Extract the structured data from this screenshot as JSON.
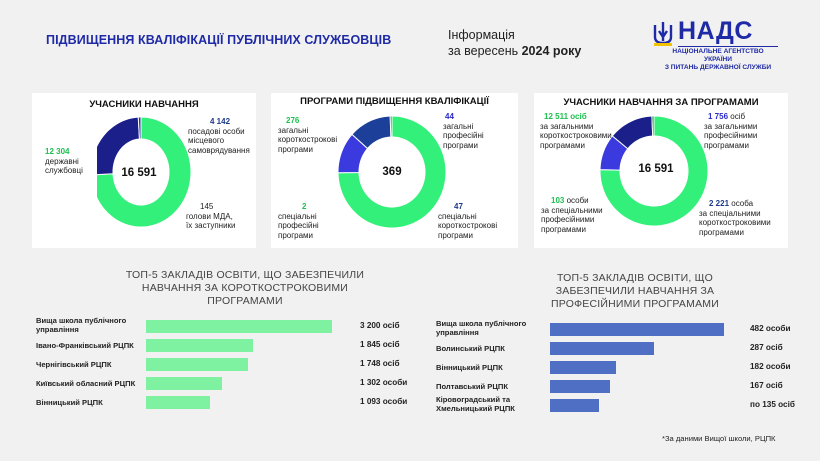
{
  "header": {
    "title": "ПІДВИЩЕННЯ КВАЛІФІКАЦІЇ ПУБЛІЧНИХ СЛУЖБОВЦІВ",
    "info_line1": "Інформація",
    "info_line2_prefix": "за вересень ",
    "info_line2_year": "2024 року",
    "logo_text": "НАДС",
    "logo_sub1": "НАЦІОНАЛЬНЕ АГЕНТСТВО УКРАЇНИ",
    "logo_sub2": "З ПИТАНЬ ДЕРЖАВНОЇ СЛУЖБИ"
  },
  "colors": {
    "green": "#33f07a",
    "blue": "#3a3adf",
    "navy": "#1a1f8a",
    "darkblue": "#1c3f9a",
    "bar_green": "#7ef2a0",
    "bar_blue": "#4f6fc4"
  },
  "panel1": {
    "title": "УЧАСНИКИ НАВЧАННЯ",
    "center": "16 591",
    "left_num": "12 304",
    "left_l1": "державні",
    "left_l2": "службовці",
    "right_num": "4 142",
    "right_l1": "посадові особи",
    "right_l2": "місцевого",
    "right_l3": "самоврядування",
    "bottom_num": "145",
    "bottom_l1": "голови МДА,",
    "bottom_l2": "їх заступники"
  },
  "panel2": {
    "title": "ПРОГРАМИ ПІДВИЩЕННЯ КВАЛІФІКАЦІЇ",
    "center": "369",
    "tl_num": "276",
    "tl_l1": "загальні",
    "tl_l2": "короткострокові",
    "tl_l3": "програми",
    "tr_num": "44",
    "tr_l1": "загальні",
    "tr_l2": "професійні",
    "tr_l3": "програми",
    "bl_num": "2",
    "bl_l1": "спеціальні",
    "bl_l2": "професійні",
    "bl_l3": "програми",
    "br_num": "47",
    "br_l1": "спеціальні",
    "br_l2": "короткострокові",
    "br_l3": "програми"
  },
  "panel3": {
    "title": "УЧАСНИКИ НАВЧАННЯ ЗА ПРОГРАМАМИ",
    "center": "16 591",
    "tl_num": "12 511 осіб",
    "tl_l1": "за загальними",
    "tl_l2": "короткостроковими",
    "tl_l3": "програмами",
    "tr_num": "1 756",
    "tr_num_suffix": " осіб",
    "tr_l1": "за загальними",
    "tr_l2": "професійними",
    "tr_l3": "програмами",
    "bl_num": "103",
    "bl_suffix": " особи",
    "bl_l1": "за спеціальними",
    "bl_l2": "професійними",
    "bl_l3": "програмами",
    "br_num": "2 221",
    "br_suffix": " особа",
    "br_l1": "за спеціальними",
    "br_l2": "короткостроковими",
    "br_l3": "програмами"
  },
  "chart_data": [
    {
      "type": "pie",
      "title": "УЧАСНИКИ НАВЧАННЯ",
      "categories": [
        "державні службовці",
        "посадові особи місцевого самоврядування",
        "голови МДА, їх заступники"
      ],
      "values": [
        12304,
        4142,
        145
      ],
      "colors": [
        "#33f07a",
        "#1a1f8a",
        "#1c3f9a"
      ]
    },
    {
      "type": "pie",
      "title": "ПРОГРАМИ ПІДВИЩЕННЯ КВАЛІФІКАЦІЇ",
      "categories": [
        "загальні короткострокові програми",
        "загальні професійні програми",
        "спеціальні короткострокові програми",
        "спеціальні професійні програми"
      ],
      "values": [
        276,
        44,
        47,
        2
      ],
      "colors": [
        "#33f07a",
        "#3a3adf",
        "#1c3f9a",
        "#1a7a3a"
      ]
    },
    {
      "type": "pie",
      "title": "УЧАСНИКИ НАВЧАННЯ ЗА ПРОГРАМАМИ",
      "categories": [
        "за загальними короткостроковими програмами",
        "за загальними професійними програмами",
        "за спеціальними короткостроковими програмами",
        "за спеціальними професійними програмами"
      ],
      "values": [
        12511,
        1756,
        2221,
        103
      ],
      "colors": [
        "#33f07a",
        "#3a3adf",
        "#1a1f8a",
        "#1a7a3a"
      ]
    },
    {
      "type": "bar",
      "title": "ТОП-5 ЗАКЛАДІВ ОСВІТИ, ЩО ЗАБЕЗПЕЧИЛИ НАВЧАННЯ ЗА КОРОТКОСТРОКОВИМИ ПРОГРАМАМИ",
      "categories": [
        "Вища школа публічного управління",
        "Івано-Франківський РЦПК",
        "Чернігівський РЦПК",
        "Київський обласний РЦПК",
        "Вінницький РЦПК"
      ],
      "values": [
        3200,
        1845,
        1748,
        1302,
        1093
      ],
      "value_labels": [
        "3 200 осіб",
        "1 845 осіб",
        "1 748 осіб",
        "1 302 особи",
        "1 093 особи"
      ]
    },
    {
      "type": "bar",
      "title": "ТОП-5 ЗАКЛАДІВ ОСВІТИ, ЩО ЗАБЕЗПЕЧИЛИ НАВЧАННЯ ЗА ПРОФЕСІЙНИМИ ПРОГРАМАМИ",
      "categories": [
        "Вища школа публічного управління",
        "Волинський РЦПК",
        "Вінницький РЦПК",
        "Полтавський РЦПК",
        "Кіровоградський та Хмельницький РЦПК"
      ],
      "values": [
        482,
        287,
        182,
        167,
        135
      ],
      "value_labels": [
        "482 особи",
        "287 осіб",
        "182 особи",
        "167 осіб",
        "по 135 осіб"
      ]
    }
  ],
  "section_left": {
    "title_l1": "ТОП-5 ЗАКЛАДІВ ОСВІТИ, ЩО ЗАБЕЗПЕЧИЛИ",
    "title_l2": "НАВЧАННЯ ЗА КОРОТКОСТРОКОВИМИ",
    "title_l3": "ПРОГРАМАМИ"
  },
  "section_right": {
    "title_l1": "ТОП-5 ЗАКЛАДІВ ОСВІТИ, ЩО",
    "title_l2": "ЗАБЕЗПЕЧИЛИ НАВЧАННЯ ЗА",
    "title_l3": "ПРОФЕСІЙНИМИ ПРОГРАМАМИ"
  },
  "footnote": "*За даними Вищої школи, РЦПК"
}
